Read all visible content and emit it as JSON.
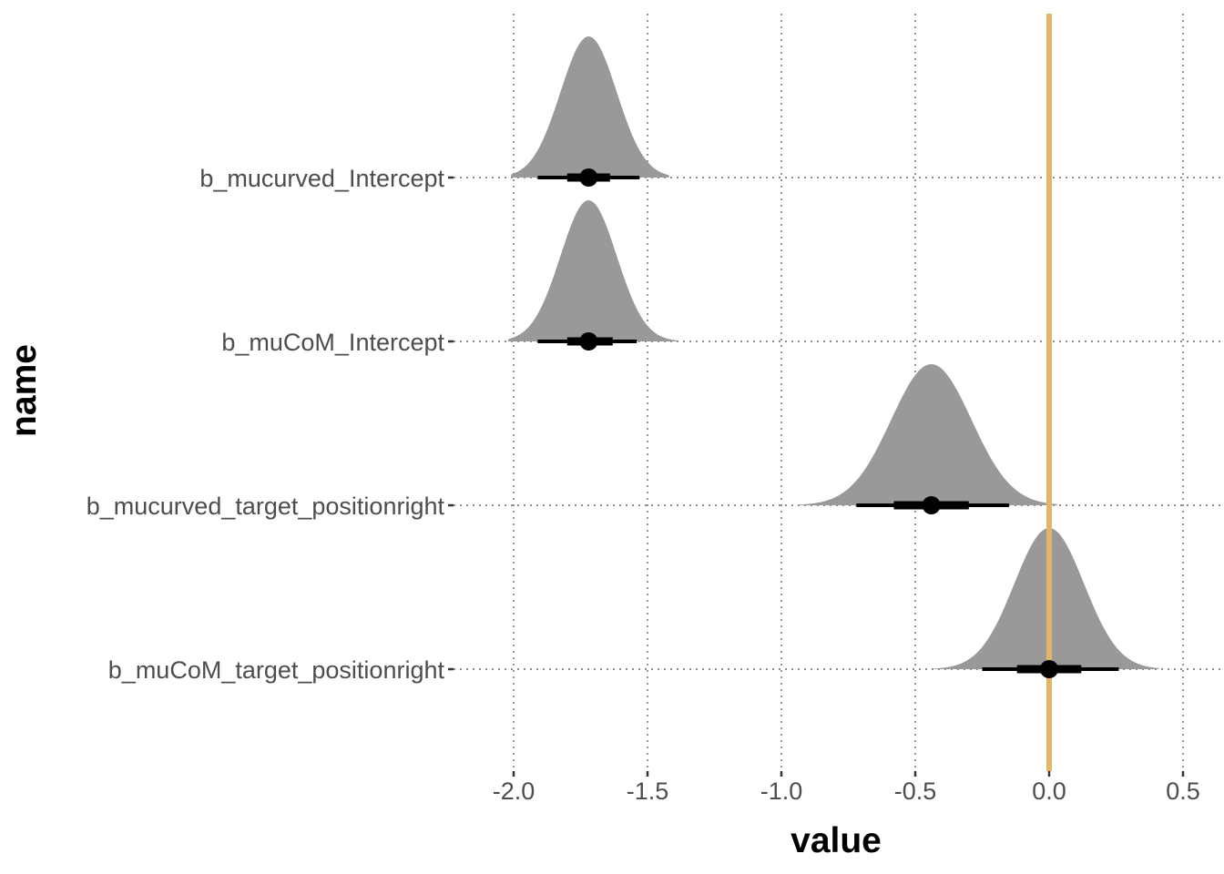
{
  "chart_data": {
    "type": "halfeye",
    "xlabel": "value",
    "ylabel": "name",
    "xlim": [
      -2.2,
      0.62
    ],
    "x_ticks": [
      -2.0,
      -1.5,
      -1.0,
      -0.5,
      0.0,
      0.5
    ],
    "x_tick_labels": [
      "-2.0",
      "-1.5",
      "-1.0",
      "-0.5",
      "0.0",
      "0.5"
    ],
    "reference_line": {
      "x": 0.0,
      "color": "#E1B66A"
    },
    "grid": true,
    "colors": {
      "density": "#999999",
      "interval": "#000000",
      "point": "#000000"
    },
    "series": [
      {
        "name": "b_mucurved_Intercept",
        "point": -1.72,
        "interval_66": [
          -1.8,
          -1.64
        ],
        "interval_95": [
          -1.91,
          -1.53
        ],
        "mean": -1.72,
        "sd": 0.105,
        "range": [
          -2.01,
          -1.42
        ]
      },
      {
        "name": "b_muCoM_Intercept",
        "point": -1.72,
        "interval_66": [
          -1.8,
          -1.63
        ],
        "interval_95": [
          -1.91,
          -1.54
        ],
        "mean": -1.72,
        "sd": 0.105,
        "range": [
          -2.02,
          -1.39
        ]
      },
      {
        "name": "b_mucurved_target_positionright",
        "point": -0.44,
        "interval_66": [
          -0.58,
          -0.3
        ],
        "interval_95": [
          -0.72,
          -0.15
        ],
        "mean": -0.44,
        "sd": 0.15,
        "range": [
          -0.94,
          0.03
        ]
      },
      {
        "name": "b_muCoM_target_positionright",
        "point": 0.0,
        "interval_66": [
          -0.12,
          0.12
        ],
        "interval_95": [
          -0.25,
          0.26
        ],
        "mean": 0.0,
        "sd": 0.13,
        "range": [
          -0.43,
          0.41
        ]
      }
    ]
  }
}
